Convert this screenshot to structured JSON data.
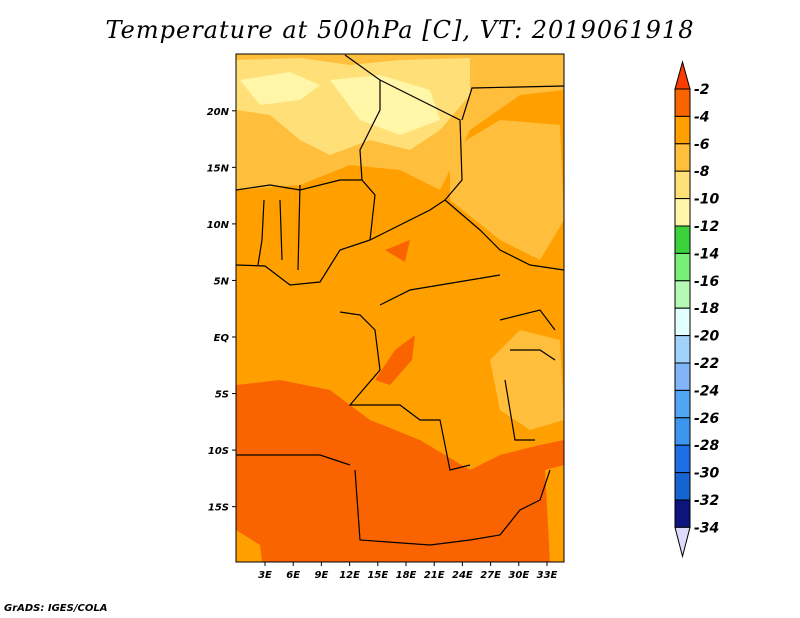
{
  "title": "Temperature at 500hPa [C], VT: 2019061918",
  "credit": "GrADS: IGES/COLA",
  "chart_data": {
    "type": "heatmap",
    "title": "Temperature at 500hPa [C], VT: 2019061918",
    "variable": "Temperature at 500hPa",
    "units": "C",
    "valid_time": "2019061918",
    "lon_range": [
      0,
      35
    ],
    "lat_range": [
      -20,
      25
    ],
    "x_ticks": [
      {
        "v": 3,
        "label": "3E"
      },
      {
        "v": 6,
        "label": "6E"
      },
      {
        "v": 9,
        "label": "9E"
      },
      {
        "v": 12,
        "label": "12E"
      },
      {
        "v": 15,
        "label": "15E"
      },
      {
        "v": 18,
        "label": "18E"
      },
      {
        "v": 21,
        "label": "21E"
      },
      {
        "v": 24,
        "label": "24E"
      },
      {
        "v": 27,
        "label": "27E"
      },
      {
        "v": 30,
        "label": "30E"
      },
      {
        "v": 33,
        "label": "33E"
      }
    ],
    "y_ticks": [
      {
        "v": 20,
        "label": "20N"
      },
      {
        "v": 15,
        "label": "15N"
      },
      {
        "v": 10,
        "label": "10N"
      },
      {
        "v": 5,
        "label": "5N"
      },
      {
        "v": 0,
        "label": "EQ"
      },
      {
        "v": -5,
        "label": "5S"
      },
      {
        "v": -10,
        "label": "10S"
      },
      {
        "v": -15,
        "label": "15S"
      }
    ],
    "colorbar": {
      "levels": [
        -2,
        -4,
        -6,
        -8,
        -10,
        -12,
        -14,
        -16,
        -18,
        -20,
        -22,
        -24,
        -26,
        -28,
        -30,
        -32,
        -34
      ],
      "labels": [
        "-2",
        "-4",
        "-6",
        "-8",
        "-10",
        "-12",
        "-14",
        "-16",
        "-18",
        "-20",
        "-22",
        "-24",
        "-26",
        "-28",
        "-30",
        "-32",
        "-34"
      ],
      "colors": [
        "#fa3c00",
        "#fa6400",
        "#ffa000",
        "#ffbe3c",
        "#ffe078",
        "#fff6a8",
        "#3cd23c",
        "#78f078",
        "#b4fab4",
        "#e1ffff",
        "#a0d2fa",
        "#82b4fa",
        "#50a5f5",
        "#3c96f0",
        "#1e6ee6",
        "#1464d2",
        "#0f147d",
        "#dcdcfa"
      ]
    },
    "regions_summary": {
      "north": "-6 to -12",
      "central": "-4 to -6",
      "south": "-2 to -4"
    }
  }
}
